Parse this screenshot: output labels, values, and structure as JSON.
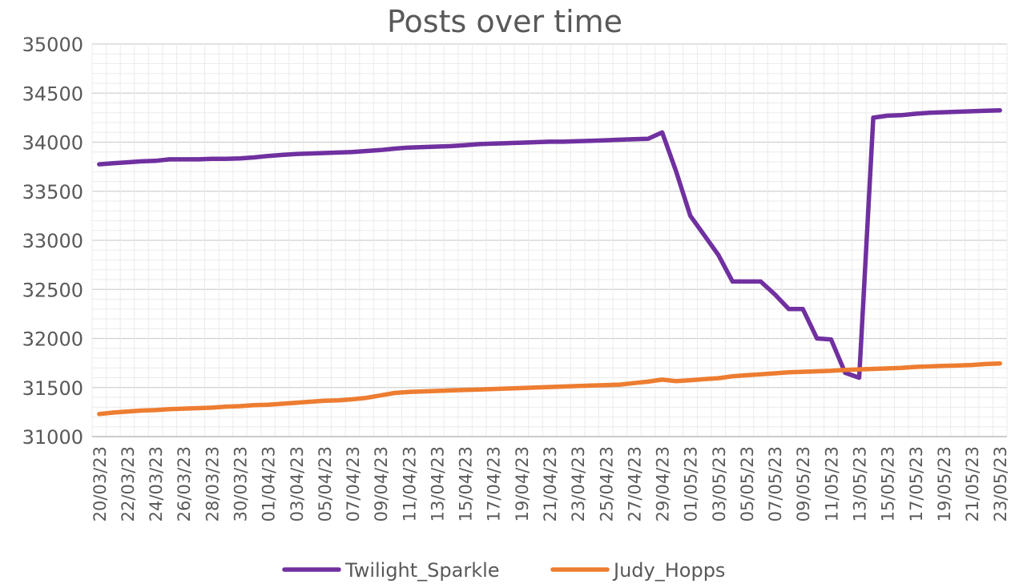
{
  "chart_data": {
    "type": "line",
    "title": "Posts over time",
    "xlabel": "",
    "ylabel": "",
    "ylim": [
      31000,
      35000
    ],
    "ytick_step": 500,
    "grid": true,
    "legend_position": "bottom",
    "x_start": "20/03/23",
    "x": [
      "20/03/23",
      "21/03/23",
      "22/03/23",
      "23/03/23",
      "24/03/23",
      "25/03/23",
      "26/03/23",
      "27/03/23",
      "28/03/23",
      "29/03/23",
      "30/03/23",
      "31/03/23",
      "01/04/23",
      "02/04/23",
      "03/04/23",
      "04/04/23",
      "05/04/23",
      "06/04/23",
      "07/04/23",
      "08/04/23",
      "09/04/23",
      "10/04/23",
      "11/04/23",
      "12/04/23",
      "13/04/23",
      "14/04/23",
      "15/04/23",
      "16/04/23",
      "17/04/23",
      "18/04/23",
      "19/04/23",
      "20/04/23",
      "21/04/23",
      "22/04/23",
      "23/04/23",
      "24/04/23",
      "25/04/23",
      "26/04/23",
      "27/04/23",
      "28/04/23",
      "29/04/23",
      "30/04/23",
      "01/05/23",
      "02/05/23",
      "03/05/23",
      "04/05/23",
      "05/05/23",
      "06/05/23",
      "07/05/23",
      "08/05/23",
      "09/05/23",
      "10/05/23",
      "11/05/23",
      "12/05/23",
      "13/05/23",
      "14/05/23",
      "15/05/23",
      "16/05/23",
      "17/05/23",
      "18/05/23",
      "19/05/23",
      "20/05/23",
      "21/05/23",
      "22/05/23",
      "23/05/23"
    ],
    "xticks": [
      "20/03/23",
      "22/03/23",
      "24/03/23",
      "26/03/23",
      "28/03/23",
      "30/03/23",
      "01/04/23",
      "03/04/23",
      "05/04/23",
      "07/04/23",
      "09/04/23",
      "11/04/23",
      "13/04/23",
      "15/04/23",
      "17/04/23",
      "19/04/23",
      "21/04/23",
      "23/04/23",
      "25/04/23",
      "27/04/23",
      "29/04/23",
      "01/05/23",
      "03/05/23",
      "05/05/23",
      "07/05/23",
      "09/05/23",
      "11/05/23",
      "13/05/23",
      "15/05/23",
      "17/05/23",
      "19/05/23",
      "21/05/23",
      "23/05/23"
    ],
    "series": [
      {
        "name": "Twilight_Sparkle",
        "color": "#7030A0",
        "values": [
          33775,
          33785,
          33795,
          33805,
          33810,
          33825,
          33825,
          33825,
          33830,
          33830,
          33835,
          33845,
          33860,
          33870,
          33880,
          33885,
          33890,
          33895,
          33900,
          33910,
          33920,
          33935,
          33945,
          33950,
          33955,
          33960,
          33970,
          33980,
          33985,
          33990,
          33995,
          34000,
          34005,
          34005,
          34010,
          34015,
          34020,
          34025,
          34030,
          34035,
          34100,
          33700,
          33250,
          33050,
          32850,
          32580,
          32580,
          32580,
          32450,
          32300,
          32300,
          32000,
          31990,
          31650,
          31600,
          34250,
          34270,
          34275,
          34290,
          34300,
          34305,
          34310,
          34315,
          34320,
          34325
        ]
      },
      {
        "name": "Judy_Hopps",
        "color": "#ED7D31",
        "values": [
          31230,
          31245,
          31255,
          31265,
          31270,
          31280,
          31285,
          31290,
          31295,
          31305,
          31310,
          31320,
          31325,
          31335,
          31345,
          31355,
          31365,
          31370,
          31380,
          31395,
          31420,
          31445,
          31455,
          31460,
          31465,
          31470,
          31475,
          31480,
          31485,
          31490,
          31495,
          31500,
          31505,
          31510,
          31515,
          31520,
          31525,
          31530,
          31545,
          31560,
          31580,
          31565,
          31575,
          31585,
          31595,
          31615,
          31625,
          31635,
          31645,
          31655,
          31660,
          31665,
          31670,
          31680,
          31685,
          31690,
          31695,
          31700,
          31710,
          31715,
          31720,
          31725,
          31730,
          31740,
          31745
        ]
      }
    ]
  }
}
